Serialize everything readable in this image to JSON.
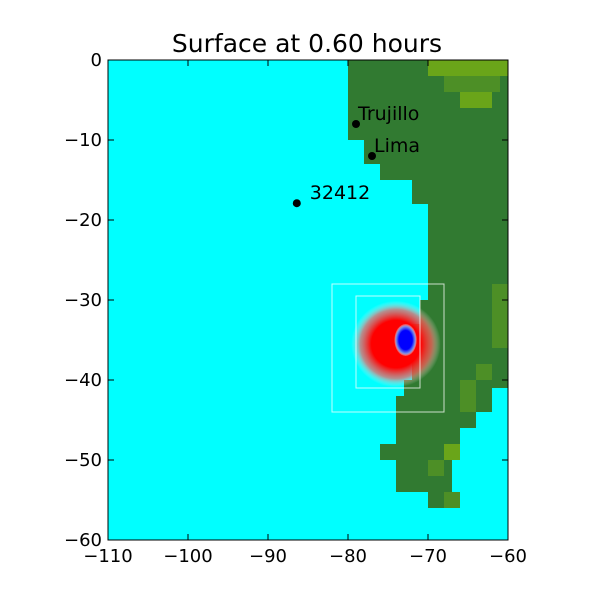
{
  "chart_data": {
    "type": "heatmap",
    "title": "Surface at 0.60 hours",
    "xlabel": "",
    "ylabel": "",
    "xlim": [
      -110,
      -60
    ],
    "ylim": [
      -60,
      0
    ],
    "x_ticks": [
      -110,
      -100,
      -90,
      -80,
      -70,
      -60
    ],
    "y_ticks": [
      0,
      -10,
      -20,
      -30,
      -40,
      -50,
      -60
    ],
    "x_tick_labels": [
      "−110",
      "−100",
      "−90",
      "−80",
      "−70",
      "−60"
    ],
    "y_tick_labels": [
      "0",
      "−10",
      "−20",
      "−30",
      "−40",
      "−50",
      "−60"
    ],
    "grid": false,
    "colors": {
      "ocean": "#00ffff",
      "land": "#317a31",
      "land_high": "#6aa519",
      "land_mid": "#4d8f26",
      "surface_positive": "#ff0000",
      "surface_negative": "#0000ff",
      "marker": "#000000",
      "grid_patch_outline": "#ffffff"
    },
    "stations": [
      {
        "name": "Trujillo",
        "lon": -79.0,
        "lat": -8.0
      },
      {
        "name": "Lima",
        "lon": -77.0,
        "lat": -12.0
      },
      {
        "name": "32412",
        "lon": -86.4,
        "lat": -17.9
      }
    ],
    "refinement_patches": [
      {
        "lon": [
          -82,
          -68
        ],
        "lat": [
          -44,
          -28
        ]
      },
      {
        "lon": [
          -79,
          -71
        ],
        "lat": [
          -41,
          -29.5
        ]
      }
    ],
    "coastline": [
      [
        -80,
        0
      ],
      [
        -80,
        -10
      ],
      [
        -78,
        -10
      ],
      [
        -78,
        -13
      ],
      [
        -76,
        -13
      ],
      [
        -76,
        -15
      ],
      [
        -72,
        -15
      ],
      [
        -72,
        -18
      ],
      [
        -70,
        -18
      ],
      [
        -70,
        -30
      ],
      [
        -71,
        -30
      ],
      [
        -71,
        -33
      ],
      [
        -72,
        -33
      ],
      [
        -72,
        -40
      ],
      [
        -73,
        -40
      ],
      [
        -73,
        -42
      ],
      [
        -74,
        -42
      ],
      [
        -74,
        -48
      ],
      [
        -76,
        -48
      ],
      [
        -76,
        -50
      ],
      [
        -74,
        -50
      ],
      [
        -74,
        -54
      ],
      [
        -70,
        -54
      ],
      [
        -70,
        -56
      ],
      [
        -68,
        -56
      ],
      [
        -68,
        -54
      ],
      [
        -67,
        -54
      ],
      [
        -67,
        -48
      ],
      [
        -66,
        -48
      ],
      [
        -66,
        -46
      ],
      [
        -64,
        -46
      ],
      [
        -64,
        -44
      ],
      [
        -62,
        -44
      ],
      [
        -62,
        -41
      ],
      [
        -60,
        -41
      ],
      [
        -60,
        0
      ]
    ],
    "land_highlights": [
      {
        "lon": [
          -70,
          -60
        ],
        "lat": [
          -2,
          0
        ],
        "level": "high"
      },
      {
        "lon": [
          -68,
          -61
        ],
        "lat": [
          -4,
          -2
        ],
        "level": "mid"
      },
      {
        "lon": [
          -66,
          -62
        ],
        "lat": [
          -6,
          -4
        ],
        "level": "high"
      },
      {
        "lon": [
          -62,
          -60
        ],
        "lat": [
          -36,
          -28
        ],
        "level": "mid"
      },
      {
        "lon": [
          -64,
          -62
        ],
        "lat": [
          -40,
          -38
        ],
        "level": "mid"
      },
      {
        "lon": [
          -66,
          -64
        ],
        "lat": [
          -44,
          -40
        ],
        "level": "mid"
      },
      {
        "lon": [
          -70,
          -68
        ],
        "lat": [
          -52,
          -50
        ],
        "level": "mid"
      },
      {
        "lon": [
          -68,
          -66
        ],
        "lat": [
          -56,
          -54
        ],
        "level": "mid"
      },
      {
        "lon": [
          -68,
          -66
        ],
        "lat": [
          -50,
          -48
        ],
        "level": "high"
      }
    ],
    "surface_features": [
      {
        "kind": "positive",
        "center_lon": -74.0,
        "center_lat": -35.5,
        "radius_lon": 5.6,
        "radius_lat": 5.4
      },
      {
        "kind": "negative",
        "center_lon": -72.8,
        "center_lat": -35.0,
        "radius_lon": 1.4,
        "radius_lat": 2.0
      }
    ]
  }
}
